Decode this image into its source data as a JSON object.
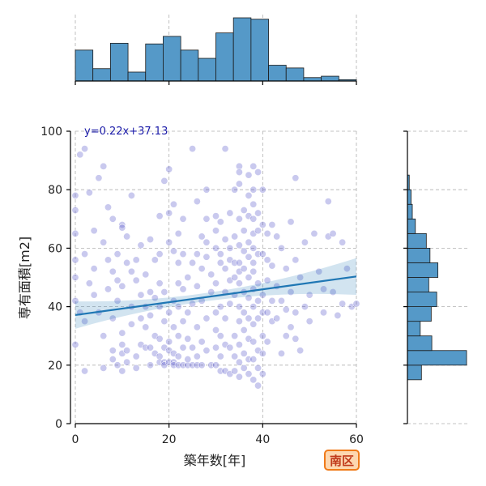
{
  "chart_data": {
    "type": "scatter",
    "xlabel": "築年数[年]",
    "ylabel": "専有面積[m2]",
    "xlim": [
      0,
      60
    ],
    "ylim": [
      0,
      100
    ],
    "xticks": [
      0,
      20,
      40,
      60
    ],
    "yticks": [
      0,
      20,
      40,
      60,
      80,
      100
    ],
    "grid": true,
    "regression": {
      "slope": 0.22,
      "intercept": 37.13,
      "label": "y=0.22x+37.13",
      "x_range": [
        0,
        60
      ]
    },
    "points": [
      [
        0,
        27
      ],
      [
        0,
        42
      ],
      [
        0,
        50
      ],
      [
        0,
        56
      ],
      [
        0,
        65
      ],
      [
        0,
        73
      ],
      [
        0,
        78
      ],
      [
        1,
        38
      ],
      [
        1,
        92
      ],
      [
        2,
        94
      ],
      [
        2,
        18
      ],
      [
        2,
        58
      ],
      [
        2,
        35
      ],
      [
        3,
        48
      ],
      [
        3,
        79
      ],
      [
        4,
        66
      ],
      [
        4,
        44
      ],
      [
        4,
        53
      ],
      [
        5,
        84
      ],
      [
        5,
        38
      ],
      [
        6,
        30
      ],
      [
        6,
        88
      ],
      [
        6,
        19
      ],
      [
        6,
        62
      ],
      [
        7,
        46
      ],
      [
        7,
        56
      ],
      [
        7,
        74
      ],
      [
        8,
        70
      ],
      [
        8,
        25
      ],
      [
        8,
        22
      ],
      [
        8,
        52
      ],
      [
        8,
        36
      ],
      [
        9,
        20
      ],
      [
        9,
        58
      ],
      [
        9,
        49
      ],
      [
        9,
        42
      ],
      [
        10,
        68
      ],
      [
        10,
        67
      ],
      [
        10,
        24
      ],
      [
        10,
        27
      ],
      [
        10,
        18
      ],
      [
        10,
        31
      ],
      [
        10,
        47
      ],
      [
        11,
        55
      ],
      [
        11,
        64
      ],
      [
        11,
        25
      ],
      [
        11,
        21
      ],
      [
        12,
        40
      ],
      [
        12,
        78
      ],
      [
        12,
        52
      ],
      [
        12,
        34
      ],
      [
        13,
        56
      ],
      [
        13,
        49
      ],
      [
        13,
        23
      ],
      [
        13,
        19
      ],
      [
        14,
        44
      ],
      [
        14,
        27
      ],
      [
        14,
        36
      ],
      [
        14,
        61
      ],
      [
        15,
        26
      ],
      [
        15,
        33
      ],
      [
        15,
        40
      ],
      [
        15,
        51
      ],
      [
        16,
        26
      ],
      [
        16,
        20
      ],
      [
        16,
        37
      ],
      [
        16,
        63
      ],
      [
        16,
        45
      ],
      [
        17,
        24
      ],
      [
        17,
        30
      ],
      [
        17,
        43
      ],
      [
        17,
        56
      ],
      [
        18,
        23
      ],
      [
        18,
        21
      ],
      [
        18,
        29
      ],
      [
        18,
        40
      ],
      [
        18,
        48
      ],
      [
        18,
        58
      ],
      [
        18,
        71
      ],
      [
        19,
        21
      ],
      [
        19,
        26
      ],
      [
        19,
        20
      ],
      [
        19,
        35
      ],
      [
        19,
        45
      ],
      [
        19,
        83
      ],
      [
        20,
        72
      ],
      [
        20,
        21
      ],
      [
        20,
        25
      ],
      [
        20,
        28
      ],
      [
        20,
        38
      ],
      [
        20,
        62
      ],
      [
        20,
        87
      ],
      [
        21,
        21
      ],
      [
        21,
        20
      ],
      [
        21,
        33
      ],
      [
        21,
        24
      ],
      [
        21,
        42
      ],
      [
        21,
        59
      ],
      [
        21,
        75
      ],
      [
        22,
        20
      ],
      [
        22,
        23
      ],
      [
        22,
        30
      ],
      [
        22,
        40
      ],
      [
        22,
        48
      ],
      [
        22,
        55
      ],
      [
        22,
        65
      ],
      [
        23,
        20
      ],
      [
        23,
        26
      ],
      [
        23,
        35
      ],
      [
        23,
        46
      ],
      [
        23,
        58
      ],
      [
        23,
        70
      ],
      [
        24,
        20
      ],
      [
        24,
        22
      ],
      [
        24,
        29
      ],
      [
        24,
        50
      ],
      [
        24,
        38
      ],
      [
        25,
        20
      ],
      [
        25,
        26
      ],
      [
        25,
        41
      ],
      [
        25,
        55
      ],
      [
        25,
        94
      ],
      [
        26,
        20
      ],
      [
        26,
        23
      ],
      [
        26,
        33
      ],
      [
        26,
        47
      ],
      [
        26,
        58
      ],
      [
        26,
        76
      ],
      [
        27,
        64
      ],
      [
        27,
        28
      ],
      [
        27,
        20
      ],
      [
        27,
        42
      ],
      [
        27,
        53
      ],
      [
        28,
        80
      ],
      [
        28,
        25
      ],
      [
        28,
        36
      ],
      [
        28,
        57
      ],
      [
        28,
        70
      ],
      [
        28,
        62
      ],
      [
        29,
        20
      ],
      [
        29,
        45
      ],
      [
        29,
        51
      ],
      [
        30,
        66
      ],
      [
        30,
        60
      ],
      [
        30,
        71
      ],
      [
        30,
        26
      ],
      [
        30,
        20
      ],
      [
        30,
        38
      ],
      [
        30,
        48
      ],
      [
        30,
        32
      ],
      [
        31,
        55
      ],
      [
        31,
        58
      ],
      [
        31,
        40
      ],
      [
        31,
        23
      ],
      [
        31,
        18
      ],
      [
        31,
        69
      ],
      [
        31,
        30
      ],
      [
        32,
        94
      ],
      [
        32,
        63
      ],
      [
        32,
        53
      ],
      [
        32,
        45
      ],
      [
        32,
        36
      ],
      [
        32,
        27
      ],
      [
        32,
        18
      ],
      [
        33,
        72
      ],
      [
        33,
        60
      ],
      [
        33,
        56
      ],
      [
        33,
        41
      ],
      [
        33,
        26
      ],
      [
        33,
        17
      ],
      [
        33,
        49
      ],
      [
        34,
        64
      ],
      [
        34,
        55
      ],
      [
        34,
        50
      ],
      [
        34,
        44
      ],
      [
        34,
        30
      ],
      [
        34,
        23
      ],
      [
        34,
        18
      ],
      [
        34,
        80
      ],
      [
        35,
        88
      ],
      [
        35,
        86
      ],
      [
        35,
        82
      ],
      [
        35,
        70
      ],
      [
        35,
        61
      ],
      [
        35,
        55
      ],
      [
        35,
        52
      ],
      [
        35,
        48
      ],
      [
        35,
        40
      ],
      [
        35,
        35
      ],
      [
        35,
        27
      ],
      [
        35,
        21
      ],
      [
        35,
        16
      ],
      [
        36,
        73
      ],
      [
        36,
        66
      ],
      [
        36,
        59
      ],
      [
        36,
        53
      ],
      [
        36,
        45
      ],
      [
        36,
        38
      ],
      [
        36,
        32
      ],
      [
        36,
        24
      ],
      [
        36,
        19
      ],
      [
        37,
        85
      ],
      [
        37,
        78
      ],
      [
        37,
        71
      ],
      [
        37,
        62
      ],
      [
        37,
        57
      ],
      [
        37,
        50
      ],
      [
        37,
        43
      ],
      [
        37,
        36
      ],
      [
        37,
        29
      ],
      [
        37,
        22
      ],
      [
        37,
        17
      ],
      [
        38,
        88
      ],
      [
        38,
        80
      ],
      [
        38,
        75
      ],
      [
        38,
        70
      ],
      [
        38,
        65
      ],
      [
        38,
        60
      ],
      [
        38,
        55
      ],
      [
        38,
        52
      ],
      [
        38,
        46
      ],
      [
        38,
        40
      ],
      [
        38,
        34
      ],
      [
        38,
        28
      ],
      [
        38,
        22
      ],
      [
        38,
        15
      ],
      [
        39,
        86
      ],
      [
        39,
        72
      ],
      [
        39,
        66
      ],
      [
        39,
        58
      ],
      [
        39,
        48
      ],
      [
        39,
        42
      ],
      [
        39,
        36
      ],
      [
        39,
        25
      ],
      [
        39,
        19
      ],
      [
        39,
        13
      ],
      [
        40,
        80
      ],
      [
        40,
        68
      ],
      [
        40,
        58
      ],
      [
        40,
        44
      ],
      [
        40,
        38
      ],
      [
        40,
        30
      ],
      [
        40,
        24
      ],
      [
        40,
        17
      ],
      [
        41,
        65
      ],
      [
        41,
        56
      ],
      [
        41,
        49
      ],
      [
        41,
        38
      ],
      [
        41,
        28
      ],
      [
        42,
        68
      ],
      [
        42,
        54
      ],
      [
        42,
        42
      ],
      [
        42,
        35
      ],
      [
        43,
        64
      ],
      [
        43,
        47
      ],
      [
        43,
        36
      ],
      [
        44,
        60
      ],
      [
        44,
        42
      ],
      [
        44,
        24
      ],
      [
        45,
        53
      ],
      [
        45,
        30
      ],
      [
        45,
        39
      ],
      [
        46,
        69
      ],
      [
        46,
        45
      ],
      [
        46,
        33
      ],
      [
        47,
        56
      ],
      [
        47,
        84
      ],
      [
        47,
        38
      ],
      [
        47,
        29
      ],
      [
        48,
        50
      ],
      [
        48,
        25
      ],
      [
        49,
        62
      ],
      [
        49,
        40
      ],
      [
        50,
        44
      ],
      [
        50,
        35
      ],
      [
        51,
        65
      ],
      [
        52,
        52
      ],
      [
        53,
        46
      ],
      [
        53,
        38
      ],
      [
        54,
        76
      ],
      [
        54,
        64
      ],
      [
        55,
        65
      ],
      [
        55,
        45
      ],
      [
        56,
        37
      ],
      [
        57,
        62
      ],
      [
        57,
        41
      ],
      [
        58,
        53
      ],
      [
        59,
        40
      ],
      [
        60,
        41
      ]
    ],
    "top_histogram": {
      "bin_edges": [
        0,
        3.75,
        7.5,
        11.25,
        15,
        18.75,
        22.5,
        26.25,
        30,
        33.75,
        37.5,
        41.25,
        45,
        48.75,
        52.5,
        56.25,
        60
      ],
      "counts": [
        45,
        18,
        55,
        13,
        54,
        65,
        45,
        33,
        70,
        92,
        90,
        23,
        19,
        5,
        7,
        2
      ]
    },
    "right_histogram": {
      "bin_edges": [
        15,
        20,
        25,
        30,
        35,
        40,
        45,
        50,
        55,
        60,
        65,
        70,
        75,
        80,
        85
      ],
      "counts": [
        23,
        97,
        40,
        21,
        39,
        48,
        35,
        50,
        37,
        31,
        13,
        8,
        6,
        3
      ]
    }
  },
  "badge": {
    "label": "南区"
  }
}
